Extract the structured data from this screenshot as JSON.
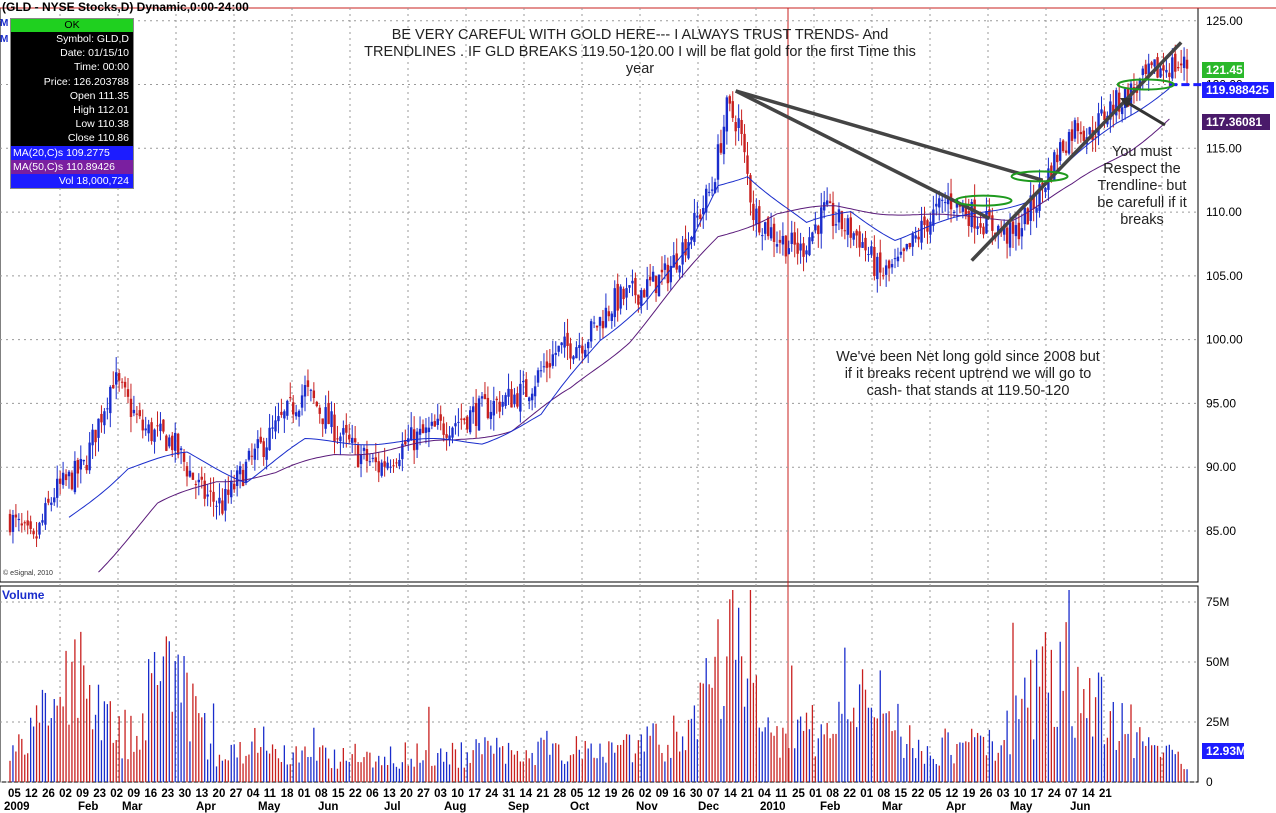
{
  "header": {
    "title": "(GLD - NYSE Stocks,D) Dynamic,0:00-24:00"
  },
  "tooltip": {
    "ok_label": "OK",
    "symbol": "Symbol: GLD,D",
    "date": "Date: 01/15/10",
    "time": "Time: 00:00",
    "price": "Price: 126.203788",
    "open": "Open 111.35",
    "high": "High 112.01",
    "low": "Low 110.38",
    "close": "Close 110.86",
    "ma20": "MA(20,C)s 109.2775",
    "ma50": "MA(50,C)s 110.89426",
    "vol": "Vol 18,000,724"
  },
  "annotations": {
    "top_line1": "BE VERY CAREFUL WITH GOLD HERE--- I ALWAYS TRUST TRENDS- And",
    "top_line2": "TRENDLINES . IF GLD BREAKS 119.50-120.00 I will be flat gold for the first Time this",
    "top_line3": "year",
    "right_line1": "You must",
    "right_line2": "Respect the",
    "right_line3": "Trendline- but",
    "right_line4": "be carefull if it",
    "right_line5": "breaks",
    "mid_line1": "We've been Net long gold since 2008 but",
    "mid_line2": "if it breaks recent uptrend we will go to",
    "mid_line3": "cash- that stands at 119.50-120",
    "copyright": "© eSignal, 2010",
    "mini_label": "M"
  },
  "volume_label": "Volume",
  "price_tags": {
    "last": "121.45",
    "line": "119.988425",
    "ma": "117.36081",
    "volume": "12.93M"
  },
  "colors": {
    "up": "#1a2dcc",
    "down": "#c8201f",
    "ma20": "#1a2dcc",
    "ma50": "#5a1a7a",
    "grid": "#9a9a9a",
    "trend": "#444444",
    "ellipse": "#1e9a1e",
    "bg": "#ffffff"
  },
  "chart_data": {
    "type": "candlestick",
    "title": "(GLD - NYSE Stocks,D) Dynamic,0:00-24:00",
    "symbol": "GLD",
    "ylim": [
      81,
      126
    ],
    "y_ticks": [
      "125.00",
      "120.00",
      "115.00",
      "110.00",
      "105.00",
      "100.00",
      "95.00",
      "90.00",
      "85.00"
    ],
    "volume_ticks": [
      "75M",
      "50M",
      "25M",
      "0"
    ],
    "volume_ylim": [
      0,
      80
    ],
    "x_day_labels": [
      "05",
      "12",
      "26",
      "02",
      "09",
      "23",
      "02",
      "09",
      "16",
      "23",
      "30",
      "13",
      "20",
      "27",
      "04",
      "11",
      "18",
      "01",
      "08",
      "15",
      "22",
      "06",
      "13",
      "20",
      "27",
      "03",
      "10",
      "17",
      "24",
      "31",
      "14",
      "21",
      "28",
      "05",
      "12",
      "19",
      "26",
      "02",
      "09",
      "16",
      "30",
      "07",
      "14",
      "21",
      "04",
      "11",
      "25",
      "01",
      "08",
      "22",
      "01",
      "08",
      "15",
      "22",
      "05",
      "12",
      "19",
      "26",
      "03",
      "10",
      "17",
      "24",
      "07",
      "14",
      "21"
    ],
    "x_month_labels": [
      "2009",
      "Feb",
      "Mar",
      "Apr",
      "May",
      "Jun",
      "Jul",
      "Aug",
      "Sep",
      "Oct",
      "Nov",
      "Dec",
      "2010",
      "Feb",
      "Mar",
      "Apr",
      "May",
      "Jun"
    ],
    "close_anchors": [
      [
        0,
        86
      ],
      [
        8,
        84
      ],
      [
        15,
        88
      ],
      [
        25,
        90
      ],
      [
        35,
        97
      ],
      [
        45,
        93
      ],
      [
        55,
        92
      ],
      [
        65,
        88
      ],
      [
        72,
        87
      ],
      [
        80,
        90
      ],
      [
        90,
        93
      ],
      [
        100,
        96
      ],
      [
        110,
        93
      ],
      [
        118,
        91
      ],
      [
        125,
        90
      ],
      [
        135,
        92
      ],
      [
        145,
        93
      ],
      [
        155,
        94
      ],
      [
        165,
        95
      ],
      [
        175,
        96
      ],
      [
        185,
        99
      ],
      [
        195,
        100
      ],
      [
        205,
        103
      ],
      [
        215,
        104
      ],
      [
        222,
        105
      ],
      [
        230,
        108
      ],
      [
        238,
        112
      ],
      [
        243,
        118
      ],
      [
        247,
        117
      ],
      [
        252,
        110
      ],
      [
        260,
        108
      ],
      [
        268,
        107
      ],
      [
        276,
        110
      ],
      [
        282,
        109
      ],
      [
        288,
        108
      ],
      [
        295,
        105
      ],
      [
        302,
        106
      ],
      [
        310,
        109
      ],
      [
        318,
        111
      ],
      [
        325,
        110
      ],
      [
        332,
        109
      ],
      [
        340,
        108
      ],
      [
        348,
        111
      ],
      [
        356,
        115
      ],
      [
        362,
        117
      ],
      [
        366,
        116
      ],
      [
        372,
        118
      ],
      [
        378,
        119
      ],
      [
        383,
        120
      ],
      [
        388,
        121
      ],
      [
        393,
        121.5
      ]
    ],
    "ma20_anchors": [
      [
        20,
        86
      ],
      [
        40,
        90
      ],
      [
        60,
        91
      ],
      [
        80,
        89
      ],
      [
        100,
        92
      ],
      [
        120,
        92
      ],
      [
        140,
        92
      ],
      [
        160,
        92
      ],
      [
        180,
        94
      ],
      [
        200,
        100
      ],
      [
        215,
        103
      ],
      [
        230,
        107
      ],
      [
        240,
        112
      ],
      [
        250,
        113
      ],
      [
        260,
        111
      ],
      [
        270,
        109
      ],
      [
        285,
        110
      ],
      [
        300,
        108
      ],
      [
        315,
        109
      ],
      [
        330,
        110
      ],
      [
        345,
        111
      ],
      [
        360,
        114
      ],
      [
        375,
        117
      ],
      [
        393,
        119.8
      ]
    ],
    "ma50_anchors": [
      [
        30,
        82
      ],
      [
        50,
        87
      ],
      [
        70,
        89
      ],
      [
        90,
        89.5
      ],
      [
        110,
        91
      ],
      [
        130,
        91.5
      ],
      [
        150,
        92
      ],
      [
        170,
        93
      ],
      [
        190,
        96
      ],
      [
        210,
        100
      ],
      [
        225,
        104
      ],
      [
        240,
        108
      ],
      [
        260,
        110
      ],
      [
        280,
        110.3
      ],
      [
        300,
        110
      ],
      [
        320,
        109.5
      ],
      [
        340,
        109.6
      ],
      [
        360,
        112
      ],
      [
        380,
        115
      ],
      [
        393,
        117.4
      ]
    ],
    "volume_anchors": [
      [
        0,
        12
      ],
      [
        25,
        55
      ],
      [
        40,
        18
      ],
      [
        52,
        60
      ],
      [
        70,
        14
      ],
      [
        100,
        12
      ],
      [
        150,
        14
      ],
      [
        200,
        18
      ],
      [
        230,
        22
      ],
      [
        247,
        78
      ],
      [
        250,
        42
      ],
      [
        260,
        20
      ],
      [
        280,
        28
      ],
      [
        290,
        40
      ],
      [
        310,
        14
      ],
      [
        335,
        20
      ],
      [
        350,
        50
      ],
      [
        360,
        45
      ],
      [
        393,
        12.9
      ]
    ],
    "trendlines": [
      {
        "name": "upper",
        "from": [
          246,
          119.5
        ],
        "to": [
          350,
          112.5
        ]
      },
      {
        "name": "falling",
        "from": [
          246,
          119.5
        ],
        "to": [
          332,
          109.5
        ]
      },
      {
        "name": "rising",
        "from": [
          326,
          106.2
        ],
        "to": [
          397,
          123.3
        ]
      },
      {
        "name": "dashed",
        "from": [
          393,
          119.99
        ],
        "to": [
          415,
          119.99
        ]
      }
    ],
    "ellipses": [
      [
        349,
        112.8
      ],
      [
        330,
        110.9
      ],
      [
        385,
        120.0
      ]
    ]
  }
}
